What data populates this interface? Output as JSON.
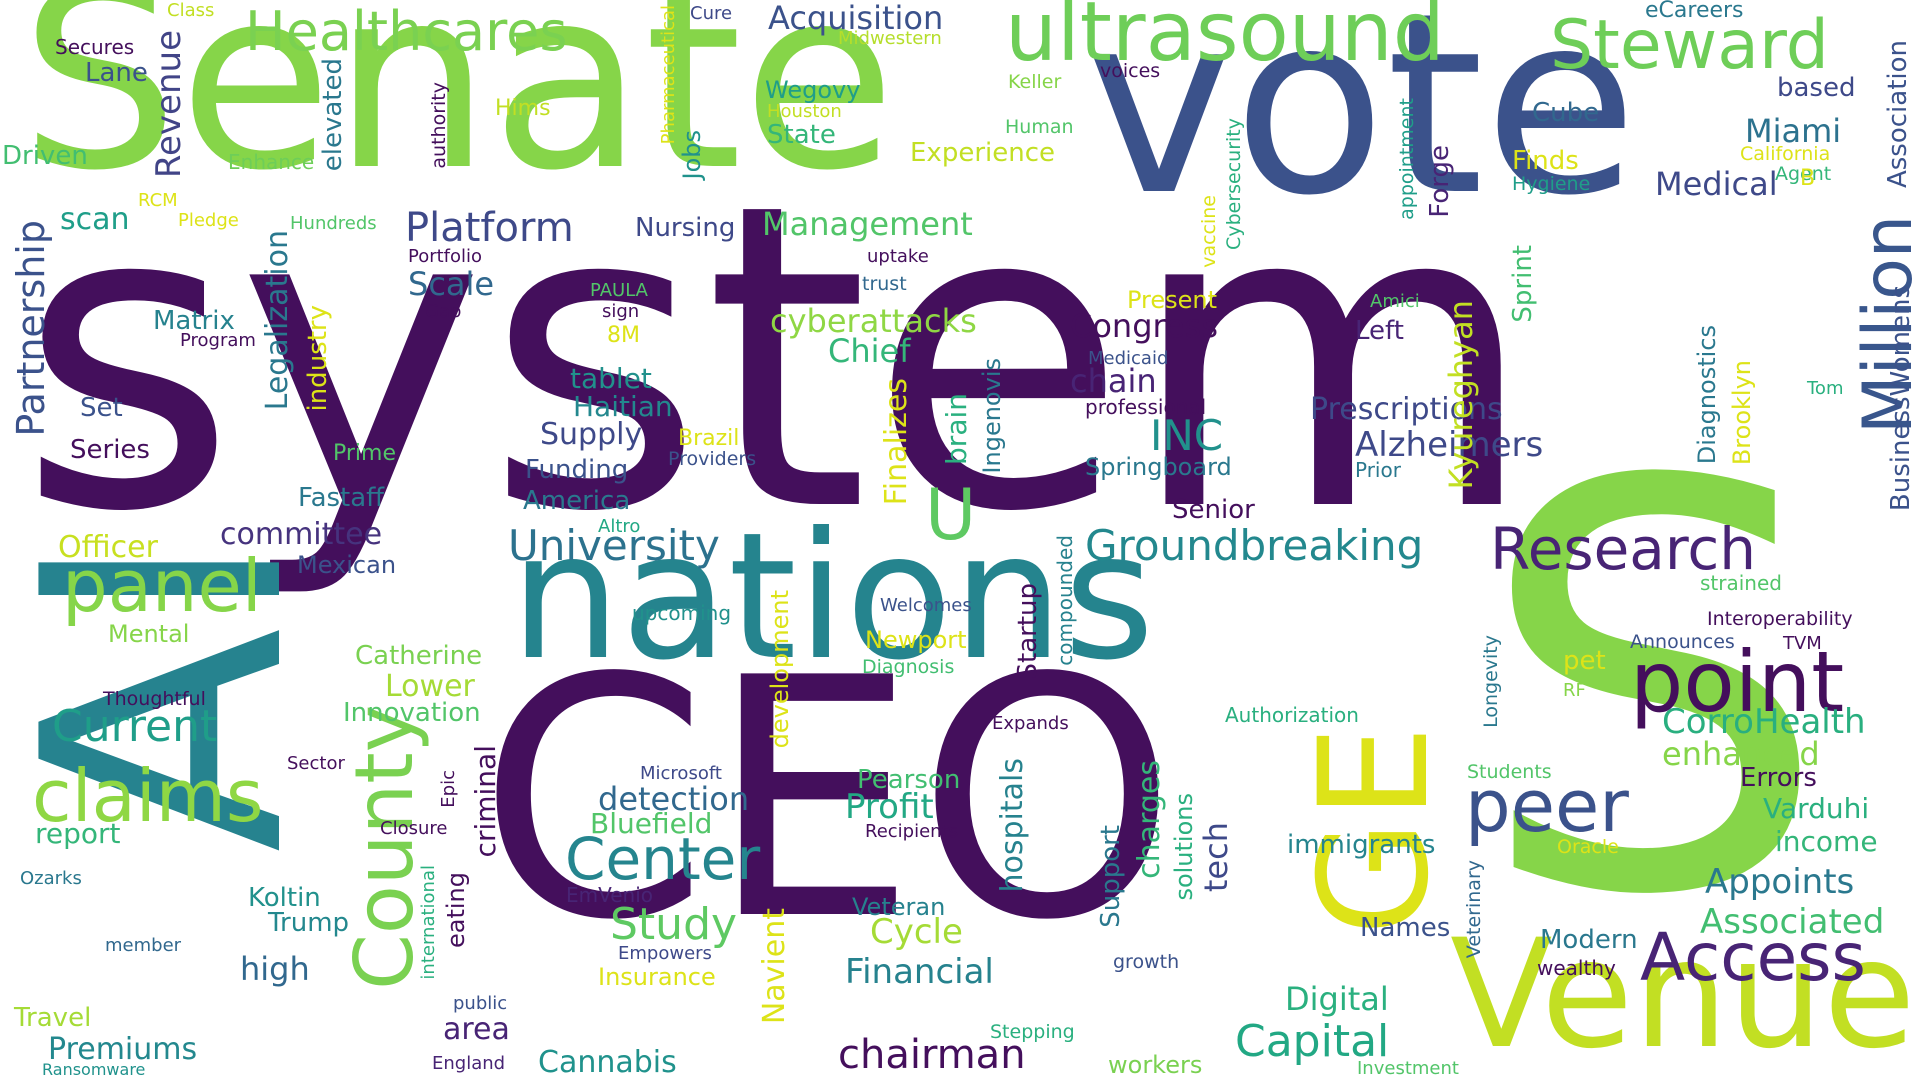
{
  "cloud": {
    "words": [
      {
        "text": "system",
        "color": "#440f5c"
      },
      {
        "text": "CEO",
        "color": "#440f5c"
      },
      {
        "text": "S",
        "color": "#86d549"
      },
      {
        "text": "AI",
        "color": "#26838f"
      },
      {
        "text": "Senate",
        "color": "#86d549"
      },
      {
        "text": "vote",
        "color": "#3b528b"
      },
      {
        "text": "nations",
        "color": "#25848e"
      },
      {
        "text": "Venue",
        "color": "#c2df23"
      },
      {
        "text": "GE",
        "color": "#dde318"
      },
      {
        "text": "County",
        "color": "#7ad151"
      },
      {
        "text": "ultrasound",
        "color": "#6ece58"
      },
      {
        "text": "Healthcares",
        "color": "#7ad151"
      },
      {
        "text": "Steward",
        "color": "#6ece58"
      },
      {
        "text": "panel",
        "color": "#86d549"
      },
      {
        "text": "claims",
        "color": "#8fd744"
      },
      {
        "text": "point",
        "color": "#440f5c"
      },
      {
        "text": "peer",
        "color": "#3b528b"
      },
      {
        "text": "Access",
        "color": "#482475"
      },
      {
        "text": "Research",
        "color": "#482475"
      },
      {
        "text": "Million",
        "color": "#39568c"
      },
      {
        "text": "U",
        "color": "#5ec962"
      },
      {
        "text": "University",
        "color": "#2c728e"
      },
      {
        "text": "Groundbreaking",
        "color": "#23888e"
      },
      {
        "text": "Center",
        "color": "#25858e"
      },
      {
        "text": "Platform",
        "color": "#3e4989"
      },
      {
        "text": "Partnership",
        "color": "#3b528b"
      },
      {
        "text": "Revenue",
        "color": "#414487"
      },
      {
        "text": "Current",
        "color": "#1f9e89"
      },
      {
        "text": "Study",
        "color": "#5ec962"
      },
      {
        "text": "chairman",
        "color": "#440f5c"
      },
      {
        "text": "Capital",
        "color": "#22a884"
      },
      {
        "text": "Acquisition",
        "color": "#3b528b"
      },
      {
        "text": "Associated",
        "color": "#42be71"
      },
      {
        "text": "CorroHealth",
        "color": "#29af7f"
      },
      {
        "text": "Appoints",
        "color": "#2a788e"
      },
      {
        "text": "Alzheimers",
        "color": "#3e4989"
      },
      {
        "text": "Prescriptions",
        "color": "#3e4989"
      },
      {
        "text": "INC",
        "color": "#21918c"
      },
      {
        "text": "Congress",
        "color": "#440f5c"
      },
      {
        "text": "chain",
        "color": "#482475"
      },
      {
        "text": "cyberattacks",
        "color": "#8fd744"
      },
      {
        "text": "Management",
        "color": "#52c569"
      },
      {
        "text": "Medical",
        "color": "#3e4989"
      },
      {
        "text": "Miami",
        "color": "#2c728e"
      },
      {
        "text": "Financial",
        "color": "#26828e"
      },
      {
        "text": "Profit",
        "color": "#22a884"
      },
      {
        "text": "Cycle",
        "color": "#a5db36"
      },
      {
        "text": "detection",
        "color": "#31688e"
      },
      {
        "text": "Bluefield",
        "color": "#52c569"
      },
      {
        "text": "Digital",
        "color": "#2ab07f"
      },
      {
        "text": "Cannabis",
        "color": "#20928c"
      },
      {
        "text": "Premiums",
        "color": "#23888e"
      },
      {
        "text": "committee",
        "color": "#46337e"
      },
      {
        "text": "Officer",
        "color": "#c8e020"
      },
      {
        "text": "Lower",
        "color": "#a5db36"
      },
      {
        "text": "Innovation",
        "color": "#52c569"
      },
      {
        "text": "Catherine",
        "color": "#7ad151"
      },
      {
        "text": "Supply",
        "color": "#3e4989"
      },
      {
        "text": "Haitian",
        "color": "#23888e"
      },
      {
        "text": "Funding",
        "color": "#3b528b"
      },
      {
        "text": "America",
        "color": "#2a788e"
      },
      {
        "text": "tablet",
        "color": "#21918c"
      },
      {
        "text": "Chief",
        "color": "#34b679"
      },
      {
        "text": "Scale",
        "color": "#31688e"
      },
      {
        "text": "Nursing",
        "color": "#3e4989"
      },
      {
        "text": "Matrix",
        "color": "#26828e"
      },
      {
        "text": "scan",
        "color": "#1f9e89"
      },
      {
        "text": "Driven",
        "color": "#42be71"
      },
      {
        "text": "Lane",
        "color": "#3b528b"
      },
      {
        "text": "Secures",
        "color": "#440f5c"
      },
      {
        "text": "Class",
        "color": "#c2df23"
      },
      {
        "text": "Hims",
        "color": "#c2df23"
      },
      {
        "text": "Enhance",
        "color": "#6ece58"
      },
      {
        "text": "RCM",
        "color": "#dde318"
      },
      {
        "text": "Pledge",
        "color": "#dde318"
      },
      {
        "text": "Hundreds",
        "color": "#52c569"
      },
      {
        "text": "Portfolio",
        "color": "#440f5c"
      },
      {
        "text": "Gap",
        "color": "#440f5c"
      },
      {
        "text": "Program",
        "color": "#440f5c"
      },
      {
        "text": "PAULA",
        "color": "#52c569"
      },
      {
        "text": "sign",
        "color": "#440f5c"
      },
      {
        "text": "8M",
        "color": "#dde318"
      },
      {
        "text": "Set",
        "color": "#3b528b"
      },
      {
        "text": "Series",
        "color": "#440f5c"
      },
      {
        "text": "Prime",
        "color": "#52c569"
      },
      {
        "text": "Fastaff",
        "color": "#2a788e"
      },
      {
        "text": "Mexican",
        "color": "#3b528b"
      },
      {
        "text": "Mental",
        "color": "#86d549"
      },
      {
        "text": "Thoughtful",
        "color": "#440f5c"
      },
      {
        "text": "report",
        "color": "#34b679"
      },
      {
        "text": "Sector",
        "color": "#440f5c"
      },
      {
        "text": "Closure",
        "color": "#440f5c"
      },
      {
        "text": "Ozarks",
        "color": "#2a788e"
      },
      {
        "text": "Koltin",
        "color": "#21918c"
      },
      {
        "text": "Trump",
        "color": "#23888e"
      },
      {
        "text": "member",
        "color": "#31688e"
      },
      {
        "text": "high",
        "color": "#31688e"
      },
      {
        "text": "Travel",
        "color": "#a5db36"
      },
      {
        "text": "Ransomware",
        "color": "#20928c"
      },
      {
        "text": "England",
        "color": "#482475"
      },
      {
        "text": "public",
        "color": "#3b528b"
      },
      {
        "text": "area",
        "color": "#482475"
      },
      {
        "text": "Microsoft",
        "color": "#3e4989"
      },
      {
        "text": "EmVenio",
        "color": "#482475"
      },
      {
        "text": "Empowers",
        "color": "#3e4989"
      },
      {
        "text": "Insurance",
        "color": "#dde318"
      },
      {
        "text": "Altro",
        "color": "#22a884"
      },
      {
        "text": "upcoming",
        "color": "#21918c"
      },
      {
        "text": "Newport",
        "color": "#dde318"
      },
      {
        "text": "Welcomes",
        "color": "#3b528b"
      },
      {
        "text": "Diagnosis",
        "color": "#42be71"
      },
      {
        "text": "Expands",
        "color": "#440f5c"
      },
      {
        "text": "Pearson",
        "color": "#42be71"
      },
      {
        "text": "Recipients",
        "color": "#440f5c"
      },
      {
        "text": "Veteran",
        "color": "#26828e"
      },
      {
        "text": "growth",
        "color": "#3b528b"
      },
      {
        "text": "Stepping",
        "color": "#2ab07f"
      },
      {
        "text": "workers",
        "color": "#7ad151"
      },
      {
        "text": "Investment",
        "color": "#52c569"
      },
      {
        "text": "Authorization",
        "color": "#29af7f"
      },
      {
        "text": "immigrants",
        "color": "#25848e"
      },
      {
        "text": "Names",
        "color": "#3b528b"
      },
      {
        "text": "Modern",
        "color": "#2a788e"
      },
      {
        "text": "wealthy",
        "color": "#440f5c"
      },
      {
        "text": "Students",
        "color": "#52c569"
      },
      {
        "text": "Oracle",
        "color": "#dde318"
      },
      {
        "text": "RF",
        "color": "#86d549"
      },
      {
        "text": "pet",
        "color": "#dde318"
      },
      {
        "text": "Announces",
        "color": "#3b528b"
      },
      {
        "text": "TVM",
        "color": "#440f5c"
      },
      {
        "text": "Interoperability",
        "color": "#440f5c"
      },
      {
        "text": "strained",
        "color": "#52c569"
      },
      {
        "text": "enhanced",
        "color": "#86d549"
      },
      {
        "text": "Errors",
        "color": "#440f5c"
      },
      {
        "text": "Varduhi",
        "color": "#2ab07f"
      },
      {
        "text": "income",
        "color": "#34b679"
      },
      {
        "text": "Springboard",
        "color": "#2a788e"
      },
      {
        "text": "Senior",
        "color": "#440f5c"
      },
      {
        "text": "Prior",
        "color": "#2a788e"
      },
      {
        "text": "Left",
        "color": "#482475"
      },
      {
        "text": "Amici",
        "color": "#52c569"
      },
      {
        "text": "Medicaid",
        "color": "#3b528b"
      },
      {
        "text": "professional",
        "color": "#440f5c"
      },
      {
        "text": "Present",
        "color": "#dde318"
      },
      {
        "text": "uptake",
        "color": "#440f5c"
      },
      {
        "text": "trust",
        "color": "#31688e"
      },
      {
        "text": "Experience",
        "color": "#c2df23"
      },
      {
        "text": "Human",
        "color": "#52c569"
      },
      {
        "text": "Keller",
        "color": "#86d549"
      },
      {
        "text": "voices",
        "color": "#440f5c"
      },
      {
        "text": "Jobs",
        "color": "#20928c"
      },
      {
        "text": "Wegovy",
        "color": "#1f9e89"
      },
      {
        "text": "Houston",
        "color": "#c2df23"
      },
      {
        "text": "State",
        "color": "#34b679"
      },
      {
        "text": "Cure",
        "color": "#3e4989"
      },
      {
        "text": "Midwestern",
        "color": "#b5de2b"
      },
      {
        "text": "eCareers",
        "color": "#2a788e"
      },
      {
        "text": "based",
        "color": "#3e4989"
      },
      {
        "text": "Cube",
        "color": "#31688e"
      },
      {
        "text": "Finds",
        "color": "#dde318"
      },
      {
        "text": "Hygiene",
        "color": "#1f9e89"
      },
      {
        "text": "California",
        "color": "#dde318"
      },
      {
        "text": "Agent",
        "color": "#34b679"
      },
      {
        "text": "B",
        "color": "#dde318"
      },
      {
        "text": "Tom",
        "color": "#2ab07f"
      },
      {
        "text": "Association",
        "color": "#3b528b"
      },
      {
        "text": "BusinessWomens",
        "color": "#3b528b"
      },
      {
        "text": "Brooklyn",
        "color": "#dde318"
      },
      {
        "text": "Diagnostics",
        "color": "#2a788e"
      },
      {
        "text": "Kyureghyan",
        "color": "#c2df23"
      },
      {
        "text": "Sprint",
        "color": "#42be71"
      },
      {
        "text": "Forge",
        "color": "#482475"
      },
      {
        "text": "appointment",
        "color": "#1f9e89"
      },
      {
        "text": "Cybersecurity",
        "color": "#2ab07f"
      },
      {
        "text": "vaccine",
        "color": "#dde318"
      },
      {
        "text": "Pharmaceutical",
        "color": "#dde318"
      },
      {
        "text": "authority",
        "color": "#440f5c"
      },
      {
        "text": "elevated",
        "color": "#2a788e"
      },
      {
        "text": "Legalization",
        "color": "#2a788e"
      },
      {
        "text": "industry",
        "color": "#dde318"
      },
      {
        "text": "Finalizes",
        "color": "#dde318"
      },
      {
        "text": "brain",
        "color": "#2ab07f"
      },
      {
        "text": "Ingenovis",
        "color": "#2a788e"
      },
      {
        "text": "Startup",
        "color": "#440f5c"
      },
      {
        "text": "compounded",
        "color": "#26828e"
      },
      {
        "text": "development",
        "color": "#dde318"
      },
      {
        "text": "Navient",
        "color": "#dde318"
      },
      {
        "text": "hospitals",
        "color": "#26828e"
      },
      {
        "text": "Support",
        "color": "#2a788e"
      },
      {
        "text": "charges",
        "color": "#34b679"
      },
      {
        "text": "solutions",
        "color": "#2ab07f"
      },
      {
        "text": "tech",
        "color": "#3e4989"
      },
      {
        "text": "criminal",
        "color": "#440f5c"
      },
      {
        "text": "eating",
        "color": "#440f5c"
      },
      {
        "text": "international",
        "color": "#2ab07f"
      },
      {
        "text": "Epic",
        "color": "#440f5c"
      },
      {
        "text": "Longevity",
        "color": "#2a788e"
      },
      {
        "text": "Veterinary",
        "color": "#31688e"
      },
      {
        "text": "Brazil",
        "color": "#dde318"
      },
      {
        "text": "Providers",
        "color": "#3b528b"
      }
    ]
  }
}
